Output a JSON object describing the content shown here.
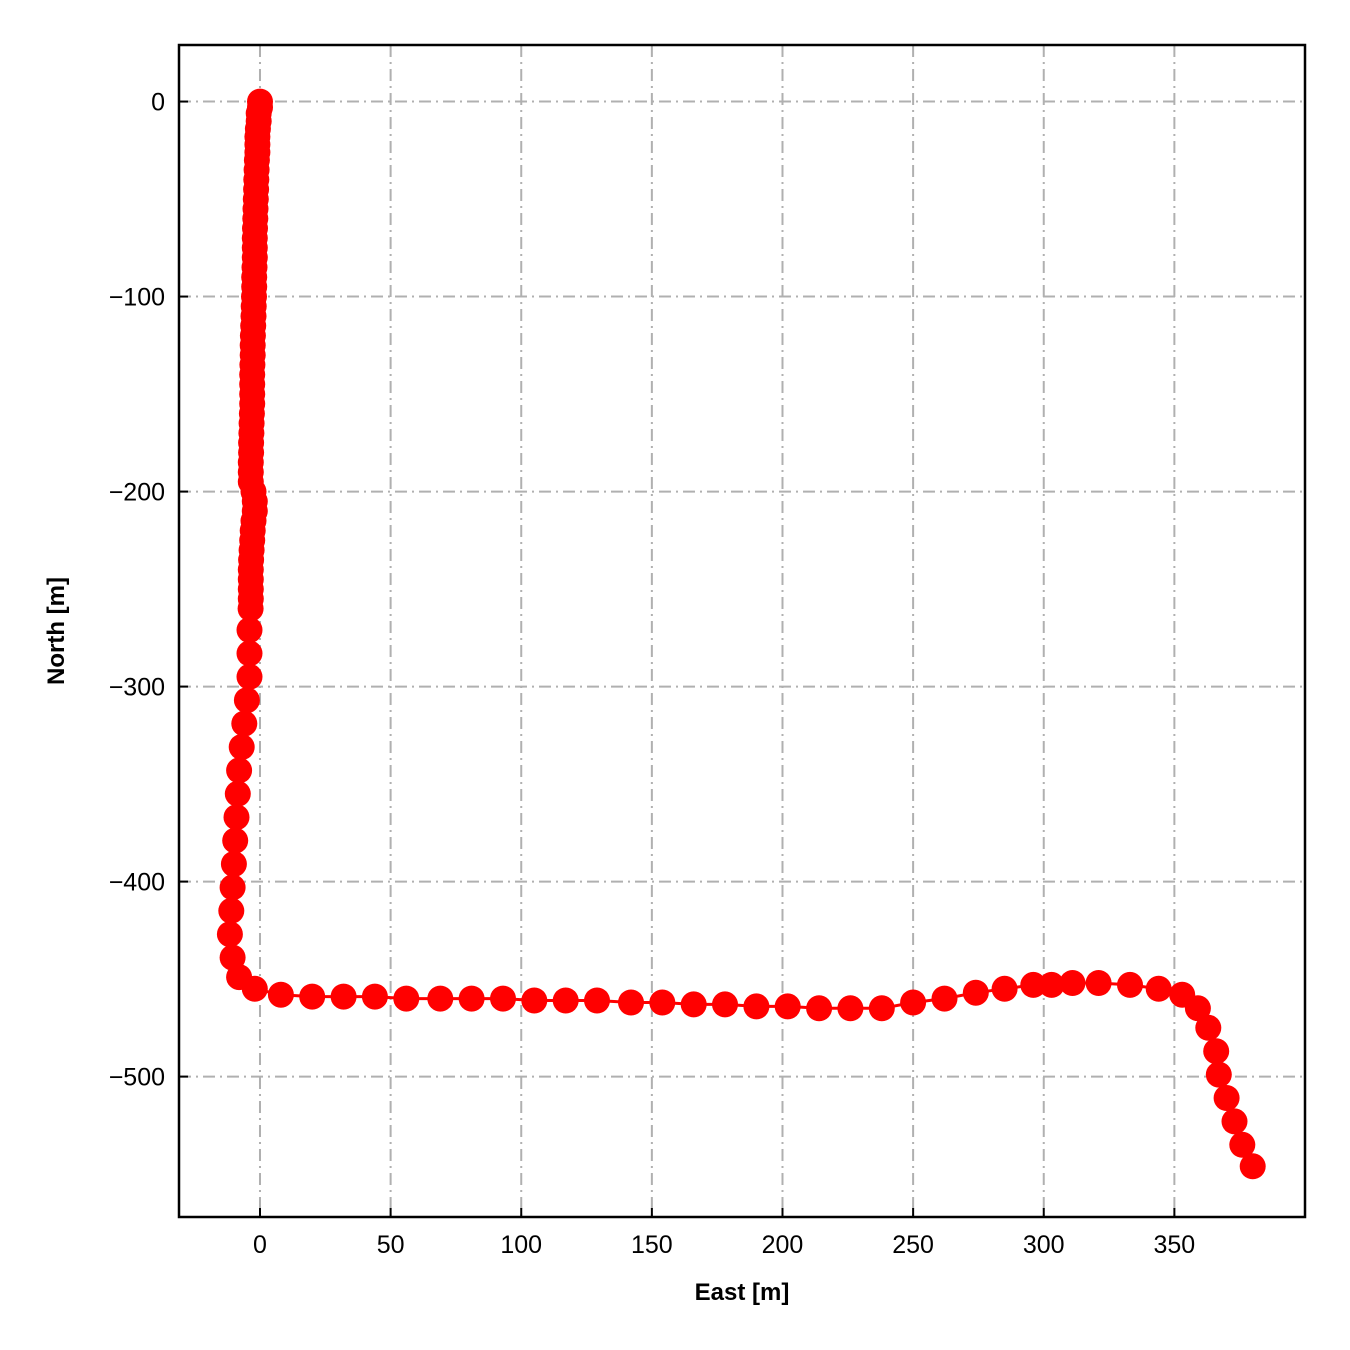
{
  "chart_data": {
    "type": "scatter",
    "title": "",
    "xlabel": "East [m]",
    "ylabel": "North [m]",
    "xlim": [
      -31,
      400
    ],
    "ylim": [
      -572,
      29
    ],
    "x_ticks": [
      0,
      50,
      100,
      150,
      200,
      250,
      300,
      350
    ],
    "y_ticks": [
      0,
      -100,
      -200,
      -300,
      -400,
      -500
    ],
    "x_tick_labels": [
      "0",
      "50",
      "100",
      "150",
      "200",
      "250",
      "300",
      "350"
    ],
    "y_tick_labels": [
      "0",
      "−100",
      "−200",
      "−300",
      "−400",
      "−500"
    ],
    "grid": true,
    "legend": "none",
    "marker_color": "#ff0000",
    "series": [
      {
        "points": [
          [
            0,
            0
          ],
          [
            0,
            -3
          ],
          [
            -0.5,
            -6
          ],
          [
            -0.5,
            -10
          ],
          [
            -0.8,
            -14
          ],
          [
            -1,
            -18
          ],
          [
            -1,
            -22
          ],
          [
            -1,
            -26
          ],
          [
            -1.2,
            -30
          ],
          [
            -1.3,
            -35
          ],
          [
            -1.4,
            -40
          ],
          [
            -1.5,
            -45
          ],
          [
            -1.6,
            -50
          ],
          [
            -1.7,
            -55
          ],
          [
            -1.8,
            -60
          ],
          [
            -1.9,
            -65
          ],
          [
            -2,
            -70
          ],
          [
            -2,
            -75
          ],
          [
            -2,
            -80
          ],
          [
            -2.1,
            -85
          ],
          [
            -2.2,
            -90
          ],
          [
            -2.2,
            -95
          ],
          [
            -2.3,
            -100
          ],
          [
            -2.4,
            -105
          ],
          [
            -2.5,
            -110
          ],
          [
            -2.6,
            -115
          ],
          [
            -2.7,
            -120
          ],
          [
            -2.8,
            -125
          ],
          [
            -2.8,
            -130
          ],
          [
            -2.9,
            -135
          ],
          [
            -3,
            -140
          ],
          [
            -3,
            -145
          ],
          [
            -3,
            -150
          ],
          [
            -3,
            -155
          ],
          [
            -3.1,
            -160
          ],
          [
            -3.2,
            -165
          ],
          [
            -3.3,
            -170
          ],
          [
            -3.4,
            -175
          ],
          [
            -3.4,
            -180
          ],
          [
            -3.5,
            -185
          ],
          [
            -3.5,
            -190
          ],
          [
            -3.5,
            -195
          ],
          [
            -2.5,
            -200
          ],
          [
            -2,
            -205
          ],
          [
            -2,
            -210
          ],
          [
            -2.5,
            -215
          ],
          [
            -2.8,
            -220
          ],
          [
            -3,
            -225
          ],
          [
            -3.2,
            -230
          ],
          [
            -3.4,
            -235
          ],
          [
            -3.5,
            -240
          ],
          [
            -3.5,
            -245
          ],
          [
            -3.5,
            -250
          ],
          [
            -3.5,
            -255
          ],
          [
            -3.6,
            -260
          ],
          [
            -4,
            -271
          ],
          [
            -4,
            -283
          ],
          [
            -4,
            -295
          ],
          [
            -5,
            -307
          ],
          [
            -6,
            -319
          ],
          [
            -7,
            -331
          ],
          [
            -8,
            -343
          ],
          [
            -8.5,
            -355
          ],
          [
            -9,
            -367
          ],
          [
            -9.5,
            -379
          ],
          [
            -10,
            -391
          ],
          [
            -10.5,
            -403
          ],
          [
            -11,
            -415
          ],
          [
            -11.5,
            -427
          ],
          [
            -10.5,
            -439
          ],
          [
            -8,
            -449
          ],
          [
            -2,
            -455
          ],
          [
            8,
            -458
          ],
          [
            20,
            -459
          ],
          [
            32,
            -459
          ],
          [
            44,
            -459
          ],
          [
            56,
            -460
          ],
          [
            69,
            -460
          ],
          [
            81,
            -460
          ],
          [
            93,
            -460
          ],
          [
            105,
            -461
          ],
          [
            117,
            -461
          ],
          [
            129,
            -461
          ],
          [
            142,
            -462
          ],
          [
            154,
            -462
          ],
          [
            166,
            -463
          ],
          [
            178,
            -463
          ],
          [
            190,
            -464
          ],
          [
            202,
            -464
          ],
          [
            214,
            -465
          ],
          [
            226,
            -465
          ],
          [
            238,
            -465
          ],
          [
            250,
            -462
          ],
          [
            262,
            -460
          ],
          [
            274,
            -457
          ],
          [
            285,
            -455
          ],
          [
            296,
            -453
          ],
          [
            303,
            -453
          ],
          [
            311,
            -452
          ],
          [
            321,
            -452
          ],
          [
            333,
            -453
          ],
          [
            344,
            -455
          ],
          [
            353,
            -458
          ],
          [
            359,
            -465
          ],
          [
            363,
            -475
          ],
          [
            366,
            -487
          ],
          [
            367,
            -499
          ],
          [
            370,
            -511
          ],
          [
            373,
            -523
          ],
          [
            376,
            -535
          ],
          [
            380,
            -546
          ]
        ]
      }
    ]
  }
}
